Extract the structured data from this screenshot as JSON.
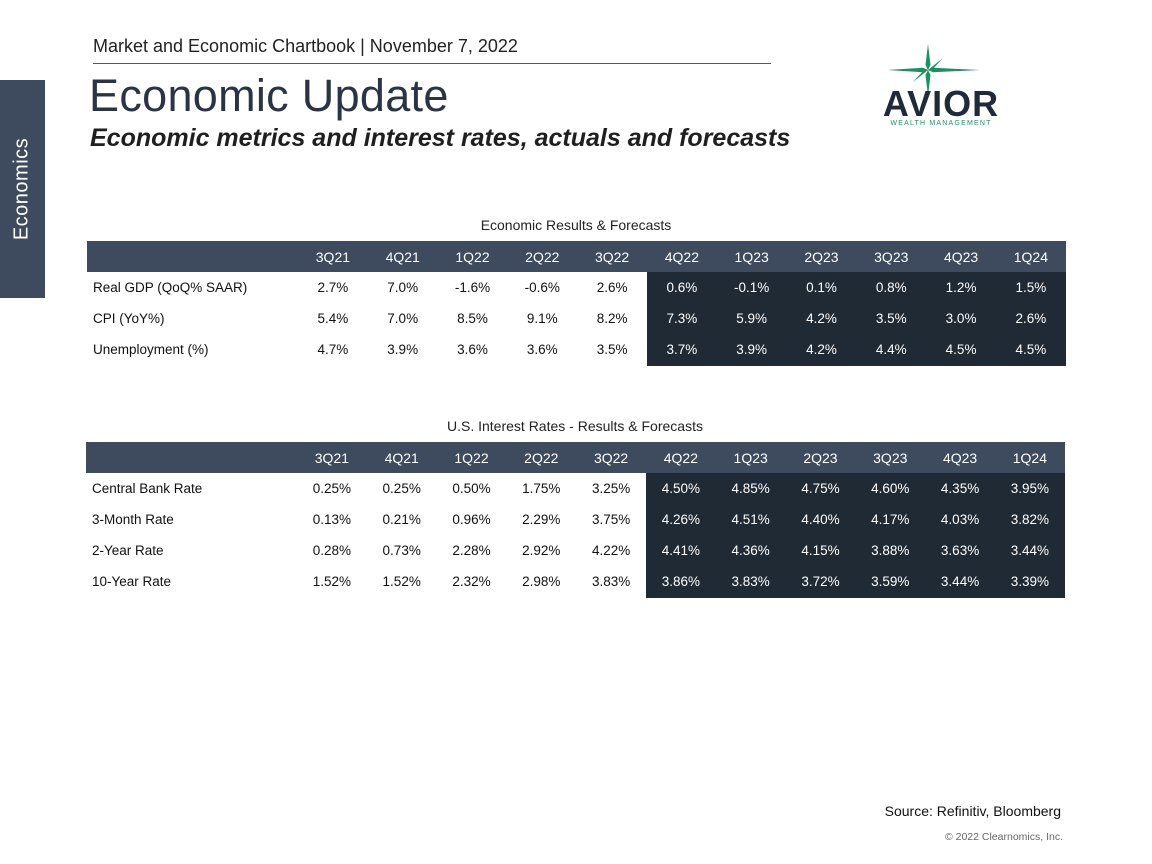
{
  "side_tab": "Economics",
  "header": "Market and Economic Chartbook | November 7, 2022",
  "title": "Economic Update",
  "subtitle": "Economic metrics and interest rates, actuals and forecasts",
  "logo": {
    "word": "AVIOR",
    "tagline": "WEALTH MANAGEMENT",
    "star_color": "#1f8f62",
    "text_color": "#1f2b38"
  },
  "colors": {
    "header_fill": "#3e4b5e",
    "forecast_fill": "#1f2a35"
  },
  "forecast_start_index": 5,
  "tables": [
    {
      "caption": "Economic Results & Forecasts",
      "columns": [
        "3Q21",
        "4Q21",
        "1Q22",
        "2Q22",
        "3Q22",
        "4Q22",
        "1Q23",
        "2Q23",
        "3Q23",
        "4Q23",
        "1Q24"
      ],
      "rows": [
        {
          "label": "Real GDP (QoQ% SAAR)",
          "values": [
            "2.7%",
            "7.0%",
            "-1.6%",
            "-0.6%",
            "2.6%",
            "0.6%",
            "-0.1%",
            "0.1%",
            "0.8%",
            "1.2%",
            "1.5%"
          ]
        },
        {
          "label": "CPI (YoY%)",
          "values": [
            "5.4%",
            "7.0%",
            "8.5%",
            "9.1%",
            "8.2%",
            "7.3%",
            "5.9%",
            "4.2%",
            "3.5%",
            "3.0%",
            "2.6%"
          ]
        },
        {
          "label": "Unemployment (%)",
          "values": [
            "4.7%",
            "3.9%",
            "3.6%",
            "3.6%",
            "3.5%",
            "3.7%",
            "3.9%",
            "4.2%",
            "4.4%",
            "4.5%",
            "4.5%"
          ]
        }
      ]
    },
    {
      "caption": "U.S. Interest Rates - Results & Forecasts",
      "columns": [
        "3Q21",
        "4Q21",
        "1Q22",
        "2Q22",
        "3Q22",
        "4Q22",
        "1Q23",
        "2Q23",
        "3Q23",
        "4Q23",
        "1Q24"
      ],
      "rows": [
        {
          "label": "Central Bank Rate",
          "values": [
            "0.25%",
            "0.25%",
            "0.50%",
            "1.75%",
            "3.25%",
            "4.50%",
            "4.85%",
            "4.75%",
            "4.60%",
            "4.35%",
            "3.95%"
          ]
        },
        {
          "label": "3-Month Rate",
          "values": [
            "0.13%",
            "0.21%",
            "0.96%",
            "2.29%",
            "3.75%",
            "4.26%",
            "4.51%",
            "4.40%",
            "4.17%",
            "4.03%",
            "3.82%"
          ]
        },
        {
          "label": "2-Year Rate",
          "values": [
            "0.28%",
            "0.73%",
            "2.28%",
            "2.92%",
            "4.22%",
            "4.41%",
            "4.36%",
            "4.15%",
            "3.88%",
            "3.63%",
            "3.44%"
          ]
        },
        {
          "label": "10-Year Rate",
          "values": [
            "1.52%",
            "1.52%",
            "2.32%",
            "2.98%",
            "3.83%",
            "3.86%",
            "3.83%",
            "3.72%",
            "3.59%",
            "3.44%",
            "3.39%"
          ]
        }
      ]
    }
  ],
  "source": "Source: Refinitiv, Bloomberg",
  "copyright": "© 2022 Clearnomics, Inc."
}
